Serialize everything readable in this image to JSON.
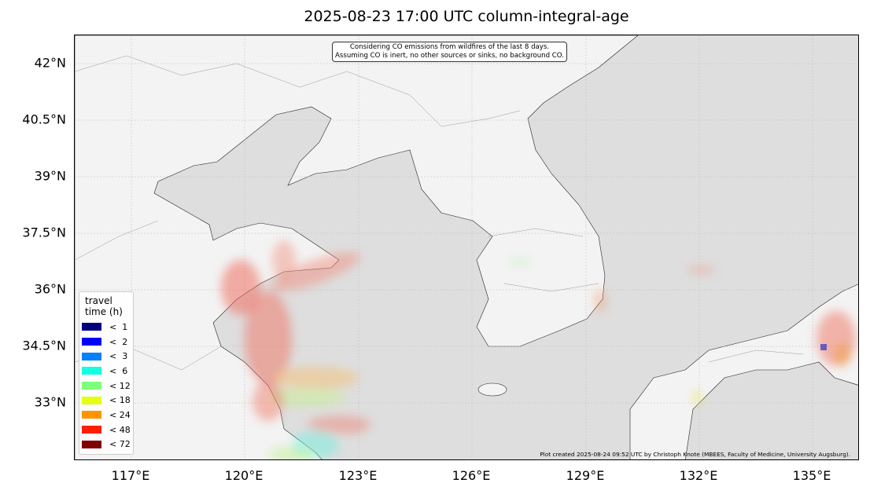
{
  "title": "2025-08-23 17:00 UTC column-integral-age",
  "note": {
    "line1": "Considering CO emissions from wildfires of the last 8 days.",
    "line2": "Assuming CO is inert, no other sources or sinks, no background CO."
  },
  "credit": "Plot created 2025-08-24 09:52 UTC by Christoph Knote (MBEES, Faculty of Medicine, University Augsburg).",
  "axes": {
    "lat_labels": [
      "42°N",
      "40.5°N",
      "39°N",
      "37.5°N",
      "36°N",
      "34.5°N",
      "33°N"
    ],
    "lon_labels": [
      "117°E",
      "120°E",
      "123°E",
      "126°E",
      "129°E",
      "132°E",
      "135°E"
    ]
  },
  "colors": {
    "land": "#f3f3f3",
    "sea": "#dedede",
    "plume": "#f07060"
  },
  "legend": {
    "title_line1": "travel",
    "title_line2": "time (h)",
    "items": [
      {
        "label": "<  1",
        "color": "#00007f"
      },
      {
        "label": "<  2",
        "color": "#0000ff"
      },
      {
        "label": "<  3",
        "color": "#0080ff"
      },
      {
        "label": "<  6",
        "color": "#15ffe1"
      },
      {
        "label": "< 12",
        "color": "#7dff7a"
      },
      {
        "label": "< 18",
        "color": "#e4ff13"
      },
      {
        "label": "< 24",
        "color": "#ff9400"
      },
      {
        "label": "< 48",
        "color": "#ff1e00"
      },
      {
        "label": "< 72",
        "color": "#7f0000"
      }
    ]
  }
}
